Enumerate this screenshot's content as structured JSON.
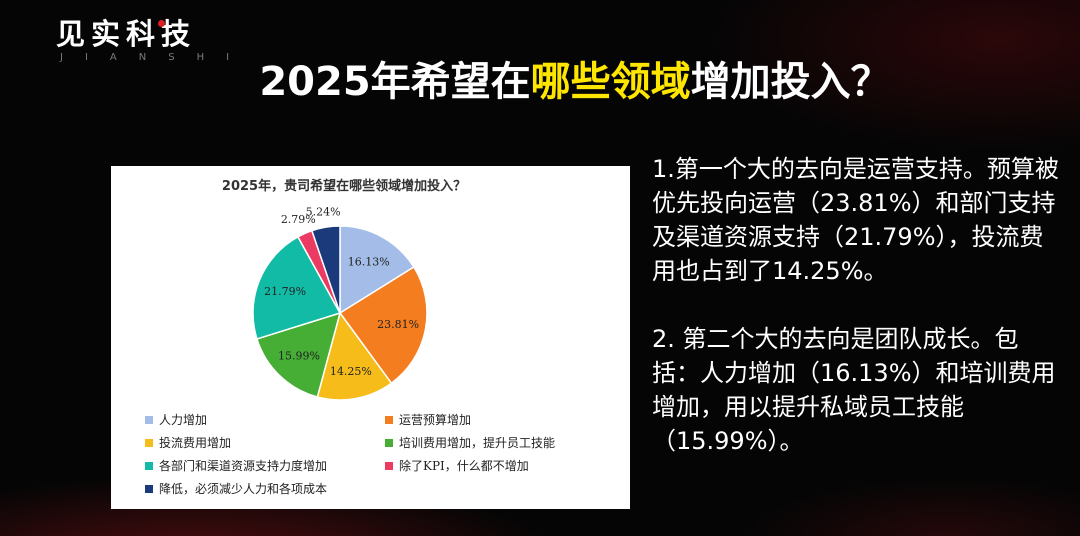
{
  "logo": {
    "main": "见实科技",
    "sub": "JIANSHI"
  },
  "title": {
    "prefix": "2025年希望在",
    "highlight": "哪些领域",
    "suffix": "增加投入？"
  },
  "colors": {
    "highlight": "#ffe600",
    "accent_red": "#e02020"
  },
  "chart_data": {
    "type": "pie",
    "title": "2025年，贵司希望在哪些领域增加投入？",
    "legend_position": "bottom",
    "start_angle_deg": 0,
    "direction": "clockwise",
    "slices": [
      {
        "name": "人力增加",
        "value": 16.13,
        "label": "16.13%",
        "color": "#a4bde8"
      },
      {
        "name": "运营预算增加",
        "value": 23.81,
        "label": "23.81%",
        "color": "#f47d20"
      },
      {
        "name": "投流费用增加",
        "value": 14.25,
        "label": "14.25%",
        "color": "#f6bc1a"
      },
      {
        "name": "培训费用增加，提升员工技能",
        "value": 15.99,
        "label": "15.99%",
        "color": "#46ad35"
      },
      {
        "name": "各部门和渠道资源支持力度增加",
        "value": 21.79,
        "label": "21.79%",
        "color": "#12bba5"
      },
      {
        "name": "除了KPI，什么都不增加",
        "value": 2.79,
        "label": "2.79%",
        "color": "#ec3b63"
      },
      {
        "name": "降低，必须减少人力和各项成本",
        "value": 5.24,
        "label": "5.24%",
        "color": "#1a3a7c"
      }
    ]
  },
  "notes": {
    "p1": "1.第一个大的去向是运营支持。预算被优先投向运营（23.81%）和部门支持及渠道资源支持（21.79%），投流费用也占到了14.25%。",
    "p2": "2. 第二个大的去向是团队成长。包括：人力增加（16.13%）和培训费用增加，用以提升私域员工技能（15.99%）。"
  }
}
